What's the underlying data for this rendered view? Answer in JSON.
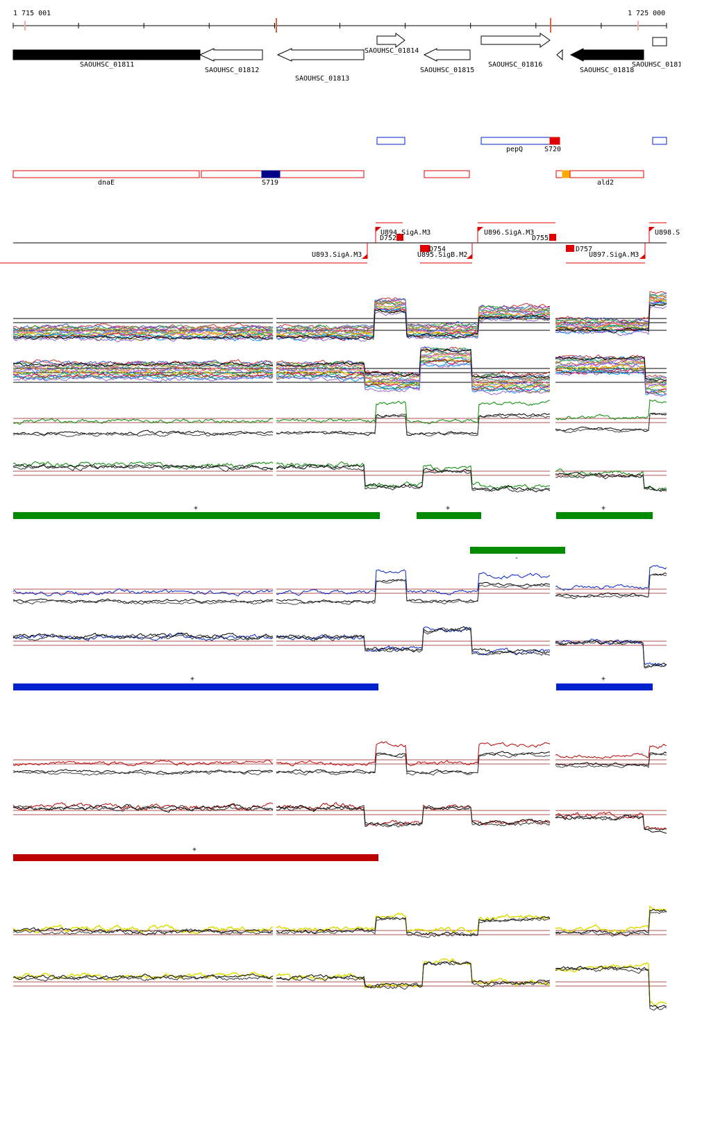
{
  "ruler": {
    "start_label": "1 715 001",
    "end_label": "1 725 000"
  },
  "genes": [
    {
      "label": "SAOUHSC_01811",
      "strand": "+",
      "filled": true
    },
    {
      "label": "SAOUHSC_01812",
      "strand": "-",
      "filled": false
    },
    {
      "label": "SAOUHSC_01813",
      "strand": "-",
      "filled": false
    },
    {
      "label": "SAOUHSC_01814",
      "strand": "+",
      "filled": false
    },
    {
      "label": "SAOUHSC_01815",
      "strand": "-",
      "filled": false
    },
    {
      "label": "SAOUHSC_01816",
      "strand": "+",
      "filled": false
    },
    {
      "label": "SAOUHSC_01818",
      "strand": "-",
      "filled": true
    },
    {
      "label": "SAOUHSC_0181",
      "strand": "+",
      "filled": false
    }
  ],
  "features_plus": [
    {
      "label": ""
    },
    {
      "label": "pepQ"
    },
    {
      "label": "S720"
    }
  ],
  "features_minus": [
    {
      "label": "dnaE"
    },
    {
      "label": "S719"
    },
    {
      "label": "ald2"
    }
  ],
  "transcripts_plus": [
    {
      "label": "U894.SigA.M3"
    },
    {
      "label": "D752"
    },
    {
      "label": "U896.SigA.M3"
    },
    {
      "label": "D755"
    },
    {
      "label": "U898.S"
    }
  ],
  "transcripts_minus": [
    {
      "label": "U893.SigA.M3"
    },
    {
      "label": "D754"
    },
    {
      "label": "U895.SigB.M2"
    },
    {
      "label": "D757"
    },
    {
      "label": "U897.SigA.M3"
    }
  ],
  "segment_tracks": [
    {
      "color": "#008a00",
      "labels": [
        "+",
        "+",
        "+",
        "-"
      ]
    },
    {
      "color": "#0022cc",
      "labels": [
        "+",
        "+"
      ]
    },
    {
      "color": "#bb0000",
      "labels": [
        "+"
      ]
    }
  ],
  "colors": {
    "green": "#008a00",
    "blue": "#0022cc",
    "red": "#bb0000",
    "yellow": "#e0e000",
    "feature_red": "#e00000",
    "feature_navy": "#000088",
    "feature_orange": "#ffaa00"
  }
}
